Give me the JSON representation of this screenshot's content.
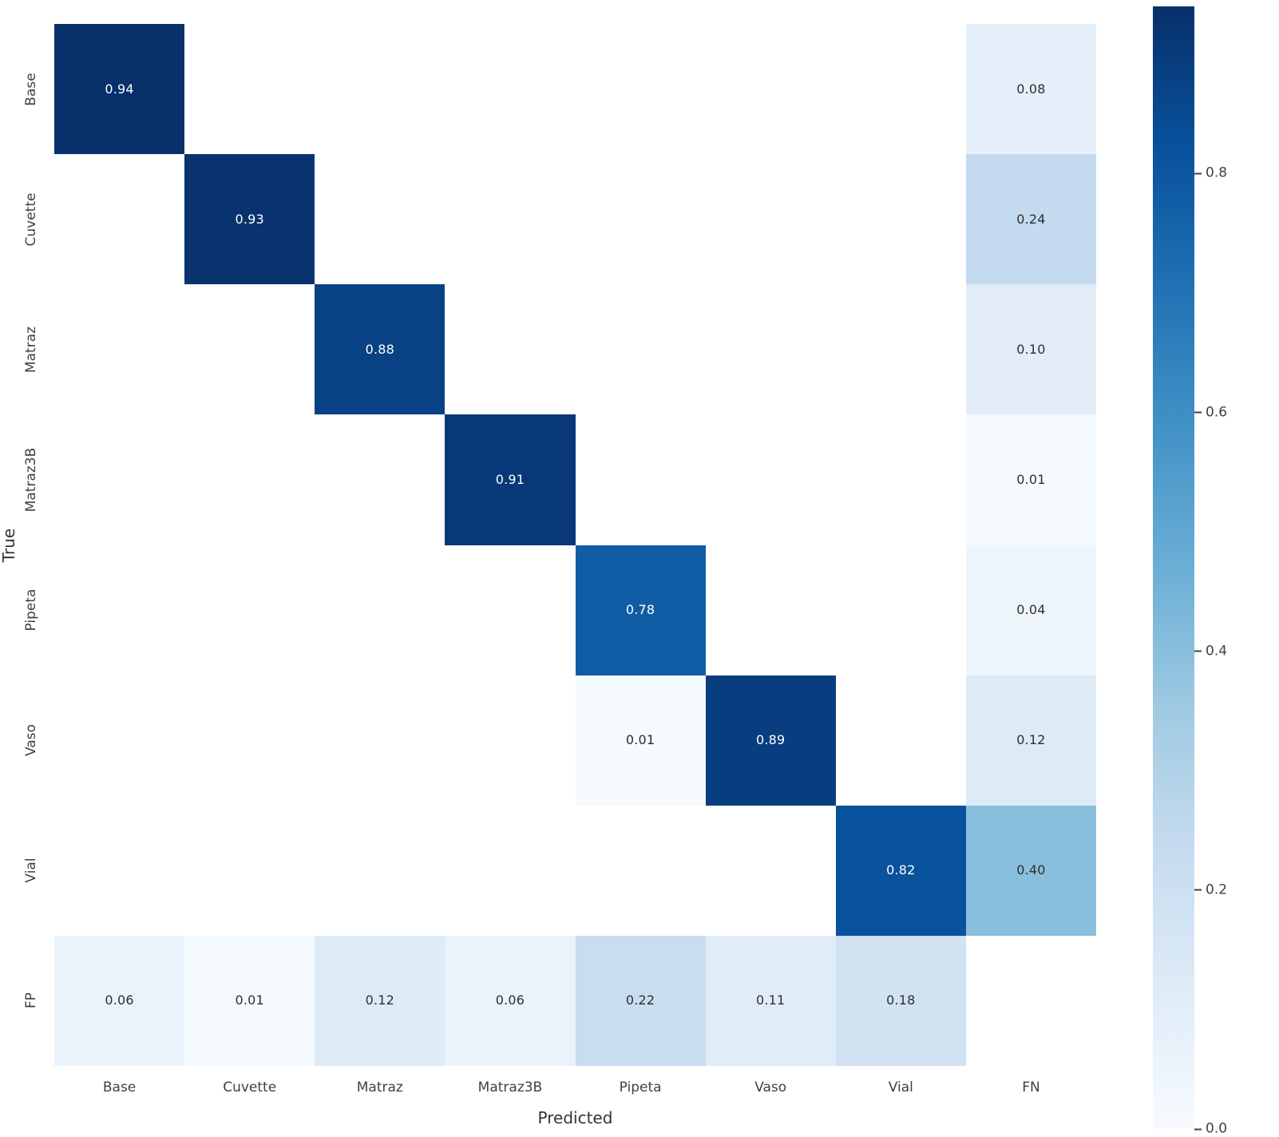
{
  "chart_data": {
    "type": "heatmap",
    "title": "",
    "xlabel": "Predicted",
    "ylabel": "True",
    "colormap": "Blues",
    "vmin": 0.0,
    "vmax": 0.94,
    "x_categories": [
      "Base",
      "Cuvette",
      "Matraz",
      "Matraz3B",
      "Pipeta",
      "Vaso",
      "Vial",
      "FN"
    ],
    "y_categories": [
      "Base",
      "Cuvette",
      "Matraz",
      "Matraz3B",
      "Pipeta",
      "Vaso",
      "Vial",
      "FP"
    ],
    "matrix": [
      [
        0.94,
        null,
        null,
        null,
        null,
        null,
        null,
        0.08
      ],
      [
        null,
        0.93,
        null,
        null,
        null,
        null,
        null,
        0.24
      ],
      [
        null,
        null,
        0.88,
        null,
        null,
        null,
        null,
        0.1
      ],
      [
        null,
        null,
        null,
        0.91,
        null,
        null,
        null,
        0.01
      ],
      [
        null,
        null,
        null,
        null,
        0.78,
        null,
        null,
        0.04
      ],
      [
        null,
        null,
        null,
        null,
        0.01,
        0.89,
        null,
        0.12
      ],
      [
        null,
        null,
        null,
        null,
        null,
        null,
        0.82,
        0.4
      ],
      [
        0.06,
        0.01,
        0.12,
        0.06,
        0.22,
        0.11,
        0.18,
        null
      ]
    ],
    "colorbar": {
      "position": "right",
      "tick_labels": [
        "0.8",
        "0.6",
        "0.4",
        "0.2",
        "0.0"
      ],
      "tick_values": [
        0.8,
        0.6,
        0.4,
        0.2,
        0.0
      ]
    },
    "annotation_format": "two decimals, empty cells left blank",
    "legend": null,
    "grid": false
  },
  "colors": {
    "background": "#ffffff",
    "tick_label": "#404040",
    "axis_title": "#333333",
    "annotation_light_cells": "#2e2e2e",
    "annotation_dark_cells": "#ffffff",
    "colormap_max": "#08306b",
    "colormap_min": "#f7fbff"
  }
}
